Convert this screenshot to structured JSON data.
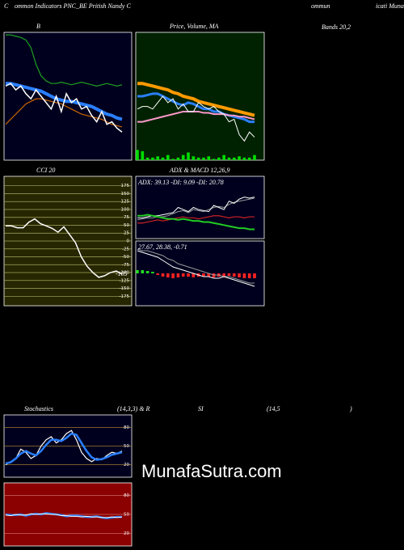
{
  "labels": [
    "C",
    "ommon Indicators PNC_BE Pritish Nandy C",
    "ommun",
    "icati  Munafa",
    "Bands 20,2",
    "Stochastics",
    "(14,3,3) & R",
    "SI",
    "(14,5",
    ")"
  ],
  "watermark": "MunafaSutra.com",
  "chart_data": [
    {
      "type": "line",
      "title": "B",
      "background": "#00001e",
      "ylim": [
        0,
        100
      ],
      "series": [
        {
          "color": "#1fa01f",
          "width": 1.2,
          "values": [
            98,
            98,
            97,
            96,
            94,
            88,
            75,
            66,
            62,
            60,
            60,
            61,
            60,
            59,
            60,
            61,
            60,
            59,
            58,
            59,
            60,
            59,
            58,
            59
          ]
        },
        {
          "color": "#cc6600",
          "width": 1.2,
          "values": [
            28,
            32,
            36,
            40,
            44,
            46,
            48,
            48,
            47,
            46,
            45,
            44,
            42,
            40,
            38,
            36,
            35,
            34,
            33,
            32,
            30,
            28,
            27,
            26
          ]
        },
        {
          "color": "#2a7fff",
          "width": 4,
          "values": [
            60,
            60,
            59,
            58,
            57,
            56,
            55,
            54,
            52,
            50,
            48,
            47,
            46,
            46,
            45,
            44,
            43,
            42,
            40,
            38,
            36,
            35,
            33,
            32
          ]
        },
        {
          "color": "#ffffff",
          "width": 1.5,
          "values": [
            58,
            60,
            55,
            58,
            52,
            48,
            55,
            50,
            45,
            40,
            50,
            38,
            52,
            45,
            48,
            40,
            42,
            35,
            30,
            38,
            28,
            30,
            25,
            22
          ]
        }
      ]
    },
    {
      "type": "line",
      "title": "Price, Volume, MA",
      "background": "#002200",
      "ylim": [
        0,
        100
      ],
      "series": [
        {
          "color": "#ff9900",
          "width": 4,
          "values": [
            60,
            60,
            59,
            58,
            57,
            56,
            55,
            53,
            52,
            50,
            49,
            48,
            46,
            45,
            44,
            43,
            42,
            41,
            40,
            39,
            38,
            37,
            36,
            35
          ]
        },
        {
          "color": "#2a7fff",
          "width": 3,
          "values": [
            50,
            50,
            51,
            52,
            52,
            50,
            48,
            46,
            44,
            43,
            45,
            44,
            42,
            40,
            40,
            38,
            38,
            36,
            35,
            34,
            33,
            32,
            30,
            30
          ]
        },
        {
          "color": "#ff99cc",
          "width": 2,
          "values": [
            30,
            30,
            31,
            32,
            33,
            34,
            35,
            36,
            37,
            38,
            38,
            38,
            38,
            37,
            37,
            36,
            36,
            36,
            35,
            35,
            34,
            34,
            33,
            32
          ]
        },
        {
          "color": "#ffffff",
          "width": 1,
          "values": [
            40,
            42,
            42,
            40,
            45,
            50,
            45,
            48,
            40,
            44,
            38,
            38,
            45,
            42,
            40,
            42,
            38,
            36,
            30,
            32,
            20,
            15,
            22,
            18
          ]
        },
        {
          "color": "#00dd00",
          "mark": "bar",
          "values": [
            8,
            7,
            2,
            2,
            3,
            2,
            4,
            1,
            2,
            4,
            6,
            3,
            2,
            2,
            3,
            1,
            2,
            4,
            2,
            2,
            3,
            2,
            2,
            4
          ]
        }
      ]
    },
    {
      "type": "line",
      "title": "CCI 20",
      "background": "#262600",
      "gridcolor": "#a8a860",
      "ylim": [
        -205,
        205
      ],
      "yticks": [
        175,
        150,
        125,
        100,
        75,
        50,
        25,
        0,
        -25,
        -50,
        -75,
        -100,
        -125,
        -150,
        -175
      ],
      "annotation": -105,
      "series": [
        {
          "color": "#ffffff",
          "width": 1.5,
          "values": [
            48,
            48,
            42,
            42,
            60,
            70,
            55,
            48,
            40,
            28,
            45,
            20,
            -5,
            -50,
            -80,
            -100,
            -115,
            -110,
            -100,
            -95,
            -105
          ]
        }
      ]
    },
    {
      "type": "line",
      "title": "ADX  & MACD 12,26,9",
      "subtitle": "ADX: 39.13 -DI: 9.09 -DI: 20.78",
      "background": "#00001e",
      "ylim": [
        0,
        60
      ],
      "series": [
        {
          "color": "#999999",
          "width": 1,
          "values": [
            18,
            19,
            20,
            20,
            21,
            21,
            22,
            24,
            26,
            27,
            25,
            28,
            27,
            26,
            28,
            30,
            31,
            30,
            33,
            35,
            36,
            37,
            38,
            39
          ]
        },
        {
          "color": "#ffffff",
          "width": 1,
          "values": [
            20,
            20,
            21,
            22,
            22,
            23,
            24,
            25,
            30,
            28,
            26,
            30,
            28,
            27,
            26,
            32,
            30,
            28,
            36,
            34,
            38,
            40,
            39,
            40
          ]
        },
        {
          "color": "#cc2222",
          "width": 1.2,
          "values": [
            15,
            15,
            16,
            17,
            18,
            17,
            18,
            19,
            20,
            21,
            20,
            20,
            19,
            20,
            21,
            22,
            22,
            21,
            20,
            21,
            21,
            20,
            21,
            21
          ]
        },
        {
          "color": "#22cc22",
          "width": 2,
          "values": [
            22,
            22,
            23,
            22,
            21,
            20,
            19,
            19,
            18,
            19,
            18,
            17,
            17,
            16,
            16,
            15,
            14,
            13,
            12,
            11,
            10,
            10,
            9,
            9
          ]
        }
      ]
    },
    {
      "type": "line",
      "subtitle": "27.67,  28.38,  -0.71",
      "background": "#00001e",
      "ylim": [
        -20,
        20
      ],
      "series": [
        {
          "color": "#ff2222",
          "positive_color": "#22dd22",
          "mark": "bar",
          "values": [
            2,
            2,
            1.5,
            1,
            -1,
            -2,
            -2.5,
            -3,
            -2.5,
            -2,
            -2,
            -2.5,
            -2,
            -2,
            -2,
            -2.5,
            -2,
            -2,
            -1.5,
            -2,
            -2.5,
            -3,
            -3,
            -3
          ]
        },
        {
          "color": "#999999",
          "width": 1,
          "values": [
            15,
            14,
            14,
            13,
            12,
            11,
            9,
            8,
            6,
            5,
            4,
            3,
            2,
            1,
            0,
            -1,
            -1,
            -2,
            -2,
            -3,
            -4,
            -5,
            -6,
            -6
          ]
        },
        {
          "color": "#ffffff",
          "width": 1,
          "values": [
            14,
            13,
            12,
            11,
            10,
            8,
            6,
            4,
            3,
            2,
            1,
            0,
            -1,
            -2,
            -2,
            -3,
            -3,
            -2,
            -3,
            -4,
            -5,
            -6,
            -7,
            -8
          ]
        }
      ]
    },
    {
      "type": "line",
      "background": "#00001e",
      "gridcolor": "#a07a30",
      "ylim": [
        0,
        100
      ],
      "yticks": [
        80,
        50,
        20
      ],
      "series": [
        {
          "color": "#ffffff",
          "width": 1.2,
          "values": [
            20,
            25,
            30,
            45,
            40,
            30,
            35,
            50,
            60,
            65,
            55,
            60,
            70,
            75,
            60,
            40,
            30,
            25,
            30,
            28,
            35,
            40,
            38,
            42
          ]
        },
        {
          "color": "#2a7fff",
          "width": 2.5,
          "values": [
            22,
            24,
            30,
            38,
            42,
            38,
            35,
            42,
            52,
            60,
            60,
            58,
            63,
            70,
            68,
            55,
            42,
            32,
            28,
            29,
            32,
            36,
            38,
            40
          ]
        }
      ]
    },
    {
      "type": "line",
      "background": "#8b0000",
      "gridcolor": "#cc6666",
      "ylim": [
        0,
        100
      ],
      "yticks": [
        80,
        50,
        20
      ],
      "series": [
        {
          "color": "#2a7fff",
          "width": 2.5,
          "values": [
            50,
            49,
            49,
            50,
            48,
            50,
            51,
            50,
            52,
            51,
            50,
            49,
            47,
            48,
            48,
            47,
            46,
            46,
            47,
            45,
            44,
            45,
            46,
            46
          ]
        },
        {
          "color": "#ffffff",
          "width": 1,
          "values": [
            49,
            48,
            50,
            49,
            49,
            51,
            50,
            51,
            51,
            50,
            50,
            48,
            48,
            47,
            47,
            46,
            47,
            46,
            46,
            45,
            45,
            46,
            45,
            46
          ]
        }
      ]
    }
  ]
}
